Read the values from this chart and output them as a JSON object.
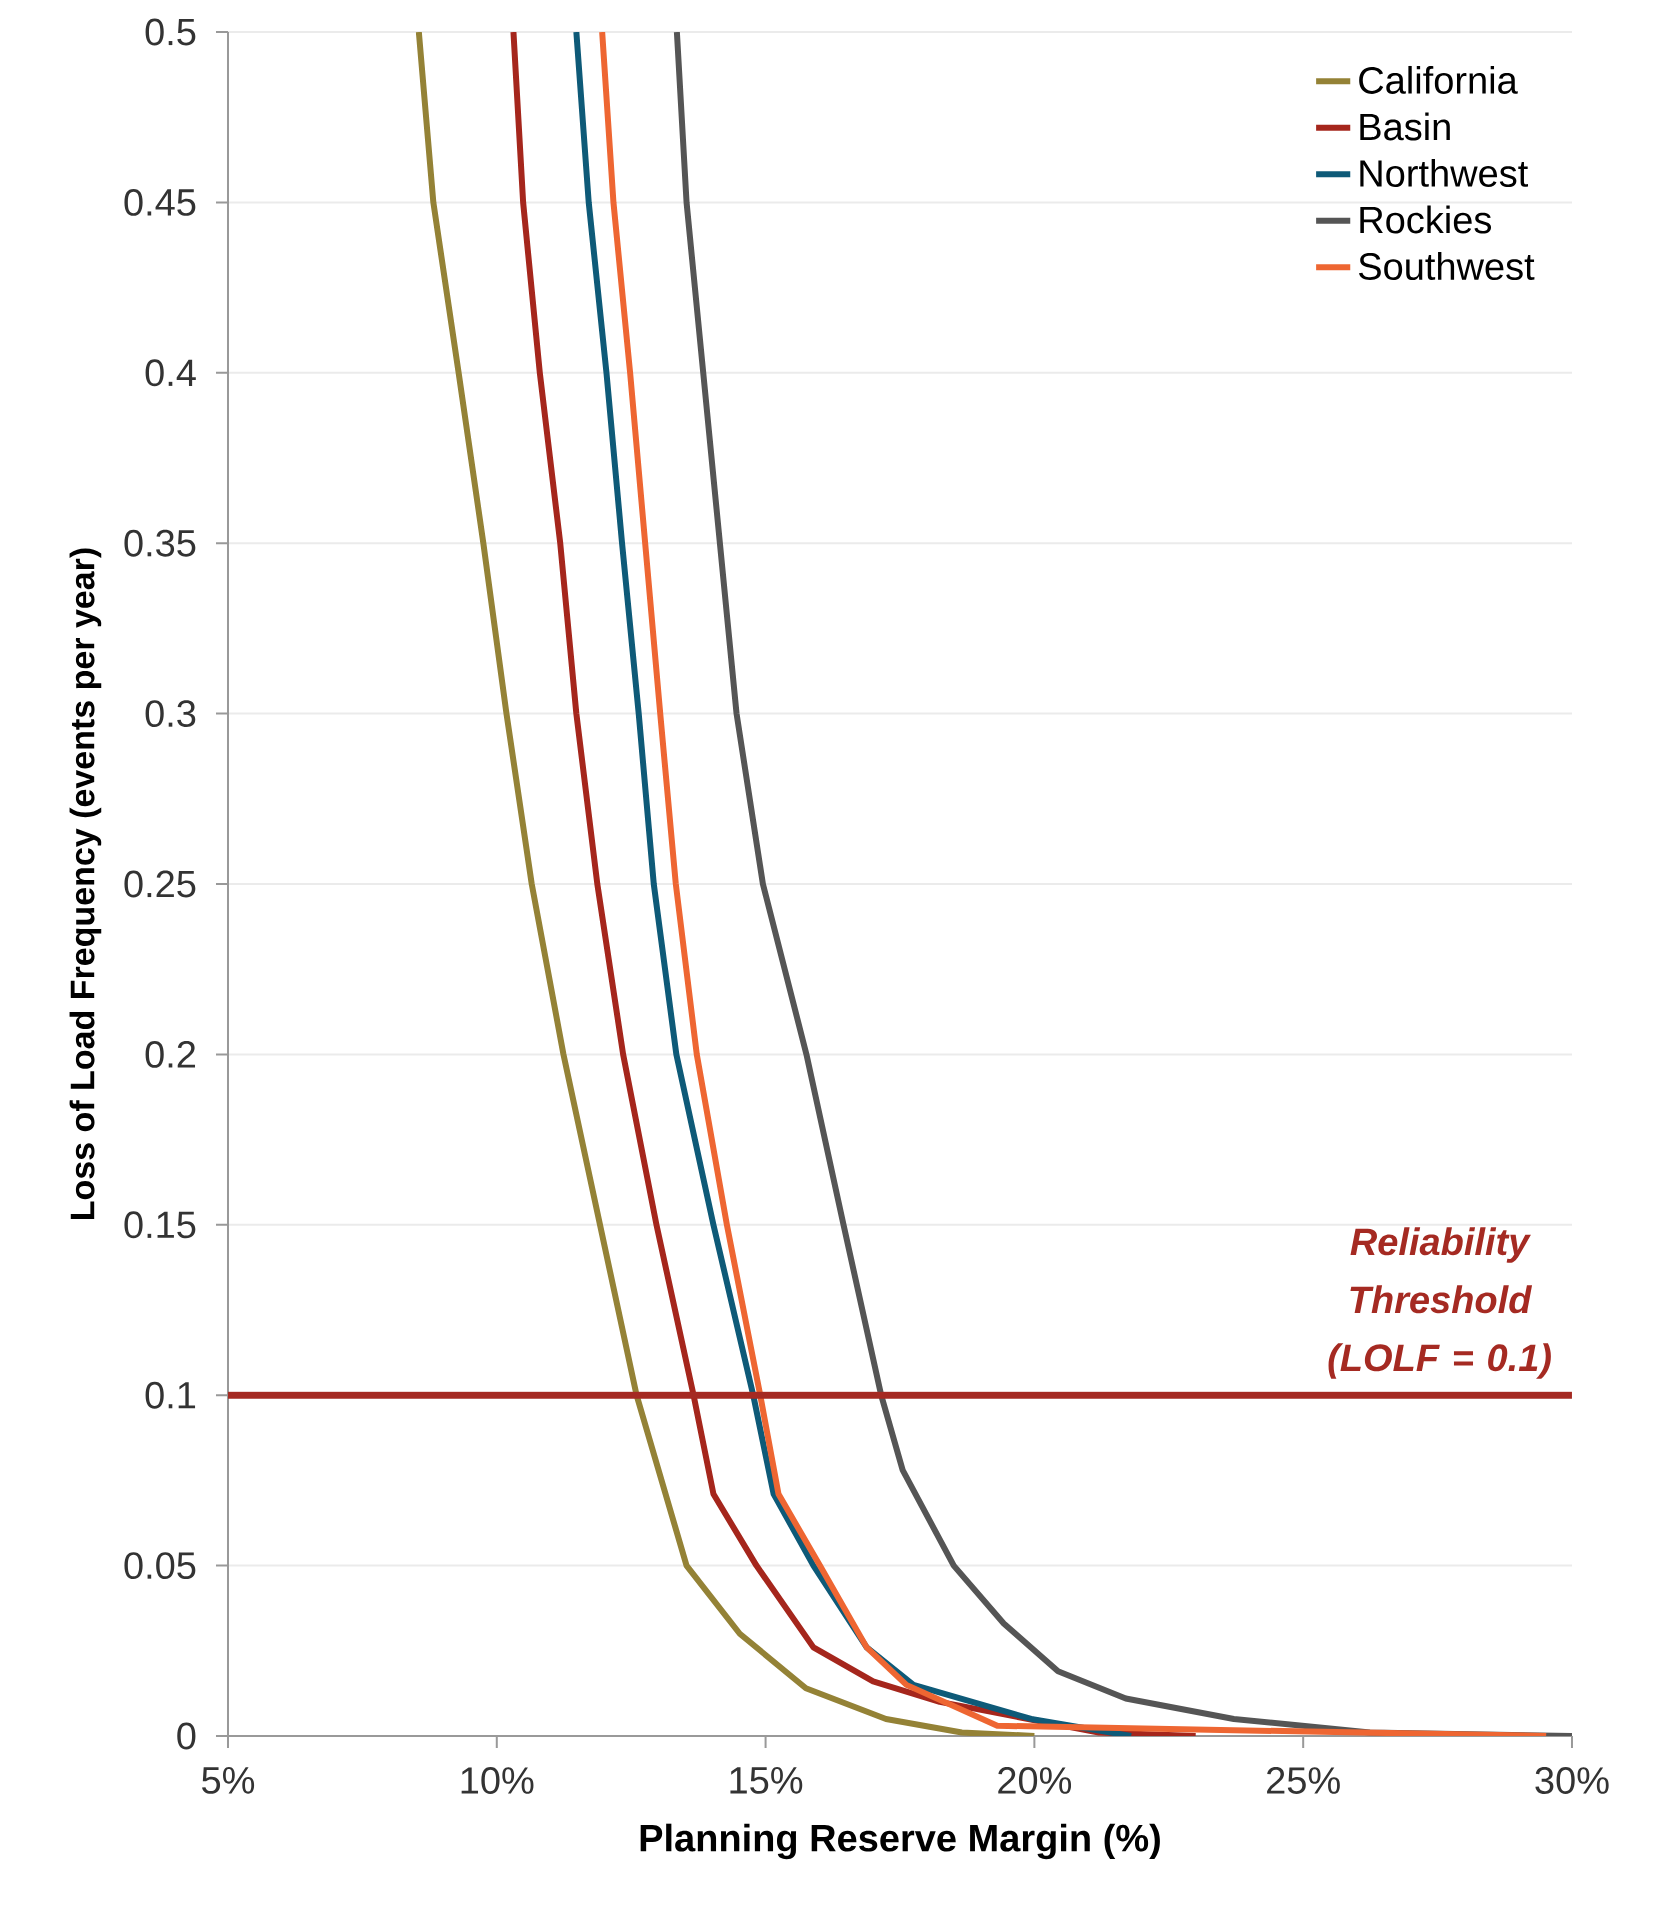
{
  "chart_data": {
    "type": "line",
    "xlabel": "Planning Reserve Margin (%)",
    "ylabel": "Loss of Load Frequency (events per year)",
    "xlim": [
      5,
      30
    ],
    "ylim": [
      0,
      0.5
    ],
    "xticks": [
      {
        "value": 5,
        "label": "5%"
      },
      {
        "value": 10,
        "label": "10%"
      },
      {
        "value": 15,
        "label": "15%"
      },
      {
        "value": 20,
        "label": "20%"
      },
      {
        "value": 25,
        "label": "25%"
      },
      {
        "value": 30,
        "label": "30%"
      }
    ],
    "yticks": [
      0,
      0.05,
      0.1,
      0.15,
      0.2,
      0.25,
      0.3,
      0.35,
      0.4,
      0.45,
      0.5
    ],
    "grid": "y",
    "legend": "top right",
    "marker": "none",
    "line_style": "solid",
    "ref_lines": [
      {
        "axis": "y",
        "value": 0.1,
        "label": "Reliability Threshold (LOLF = 0.1)",
        "color": "#a52a22"
      }
    ],
    "series": [
      {
        "name": "California",
        "color": "#948236",
        "x": [
          8.55,
          8.82,
          9.29,
          9.75,
          10.18,
          10.65,
          11.24,
          11.92,
          12.6,
          13.53,
          14.52,
          15.75,
          17.24,
          18.65,
          20
        ],
        "values": [
          0.5,
          0.45,
          0.4,
          0.35,
          0.3,
          0.25,
          0.2,
          0.15,
          0.1,
          0.05,
          0.03,
          0.014,
          0.005,
          0.001,
          0
        ]
      },
      {
        "name": "Basin",
        "color": "#a5261c",
        "x": [
          10.31,
          10.49,
          10.8,
          11.18,
          11.48,
          11.87,
          12.35,
          12.97,
          13.66,
          14.03,
          14.83,
          15.89,
          17.0,
          18.24,
          21.2,
          23
        ],
        "values": [
          0.5,
          0.45,
          0.4,
          0.35,
          0.3,
          0.25,
          0.2,
          0.15,
          0.1,
          0.071,
          0.05,
          0.026,
          0.016,
          0.01,
          0.001,
          0
        ]
      },
      {
        "name": "Northwest",
        "color": "#0e5a78",
        "x": [
          11.48,
          11.71,
          12.04,
          12.33,
          12.64,
          12.92,
          13.34,
          14.03,
          14.77,
          15.15,
          15.89,
          16.88,
          17.75,
          19.94,
          21.8
        ],
        "values": [
          0.5,
          0.45,
          0.4,
          0.35,
          0.3,
          0.25,
          0.2,
          0.15,
          0.1,
          0.071,
          0.05,
          0.026,
          0.015,
          0.005,
          0
        ]
      },
      {
        "name": "Rockies",
        "color": "#555555",
        "x": [
          13.35,
          13.53,
          13.84,
          14.15,
          14.46,
          14.95,
          15.76,
          16.45,
          17.15,
          17.55,
          18.5,
          19.43,
          20.44,
          21.7,
          23.71,
          26.24,
          30
        ],
        "values": [
          0.5,
          0.45,
          0.4,
          0.35,
          0.3,
          0.25,
          0.2,
          0.15,
          0.1,
          0.078,
          0.05,
          0.033,
          0.019,
          0.011,
          0.005,
          0.001,
          0
        ]
      },
      {
        "name": "Southwest",
        "color": "#ee6632",
        "x": [
          11.96,
          12.17,
          12.48,
          12.76,
          13.04,
          13.33,
          13.72,
          14.28,
          14.9,
          15.24,
          16.01,
          16.88,
          17.62,
          19.31,
          29.52
        ],
        "values": [
          0.5,
          0.45,
          0.4,
          0.35,
          0.3,
          0.25,
          0.2,
          0.15,
          0.1,
          0.071,
          0.05,
          0.026,
          0.015,
          0.003,
          0
        ]
      }
    ]
  }
}
